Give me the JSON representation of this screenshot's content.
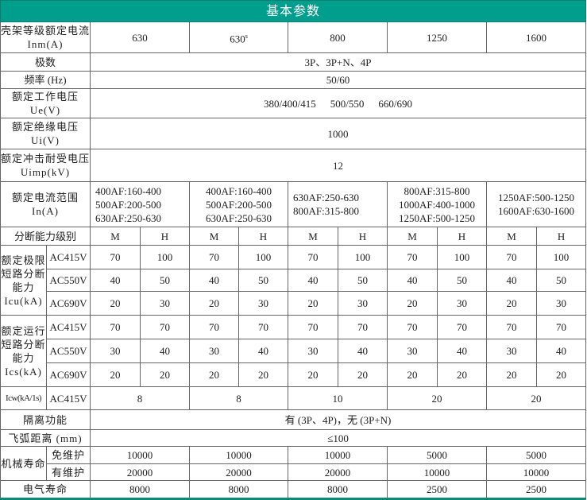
{
  "title": "基本参数",
  "frame_current": {
    "label": "壳架等级额定电流 Inm(A)",
    "values": [
      "630",
      "630",
      "800",
      "1250",
      "1600"
    ],
    "sup": "s"
  },
  "poles": {
    "label": "极数",
    "value": "3P、3P+N、4P"
  },
  "frequency": {
    "label": "频率 (Hz)",
    "value": "50/60"
  },
  "ue": {
    "label": "额定工作电压 Ue(V)",
    "values": [
      "380/400/415",
      "500/550",
      "660/690"
    ]
  },
  "ui": {
    "label": "额定绝缘电压 Ui(V)",
    "value": "1000"
  },
  "uimp": {
    "label": "额定冲击耐受电压 Uimp(kV)",
    "value": "12"
  },
  "in_range": {
    "label": "额定电流范围 In(A)",
    "cells": [
      [
        "400AF:160-400",
        "500AF:200-500",
        "630AF:250-630"
      ],
      [
        "400AF:160-400",
        "500AF:200-500",
        "630AF:250-630"
      ],
      [
        "630AF:250-630",
        "800AF:315-800"
      ],
      [
        "800AF:315-800",
        "1000AF:400-1000",
        "1250AF:500-1250"
      ],
      [
        "1250AF:500-1250",
        "1600AF:630-1600"
      ]
    ]
  },
  "breaking_level": {
    "label": "分断能力级别",
    "values": [
      "M",
      "H",
      "M",
      "H",
      "M",
      "H",
      "M",
      "H",
      "M",
      "H"
    ]
  },
  "icu": {
    "label": "额定极限短路分断能力 Icu(kA)",
    "rows": [
      {
        "voltage": "AC415V",
        "values": [
          "70",
          "100",
          "70",
          "100",
          "70",
          "100",
          "70",
          "100",
          "70",
          "100"
        ]
      },
      {
        "voltage": "AC550V",
        "values": [
          "40",
          "50",
          "40",
          "50",
          "40",
          "50",
          "40",
          "50",
          "40",
          "50"
        ]
      },
      {
        "voltage": "AC690V",
        "values": [
          "20",
          "30",
          "20",
          "30",
          "20",
          "30",
          "20",
          "30",
          "20",
          "30"
        ]
      }
    ]
  },
  "ics": {
    "label": "额定运行短路分断能力 Ics(kA)",
    "rows": [
      {
        "voltage": "AC415V",
        "values": [
          "70",
          "70",
          "70",
          "70",
          "70",
          "70",
          "70",
          "70",
          "70",
          "70"
        ]
      },
      {
        "voltage": "AC550V",
        "values": [
          "30",
          "40",
          "30",
          "40",
          "30",
          "40",
          "30",
          "40",
          "30",
          "40"
        ]
      },
      {
        "voltage": "AC690V",
        "values": [
          "20",
          "20",
          "20",
          "20",
          "20",
          "20",
          "20",
          "20",
          "20",
          "20"
        ]
      }
    ]
  },
  "icw": {
    "label": "Icw(kA/1s)",
    "voltage": "AC415V",
    "values": [
      "8",
      "8",
      "10",
      "20",
      "20"
    ]
  },
  "isolation": {
    "label": "隔离功能",
    "value": "有 (3P、4P)，无 (3P+N)"
  },
  "arc_distance": {
    "label": "飞弧距离 (mm)",
    "value": "≤100"
  },
  "mechanical_life": {
    "label": "机械寿命",
    "rows": [
      {
        "label": "免维护",
        "values": [
          "10000",
          "10000",
          "10000",
          "5000",
          "5000"
        ]
      },
      {
        "label": "有维护",
        "values": [
          "20000",
          "20000",
          "20000",
          "10000",
          "10000"
        ]
      }
    ]
  },
  "electrical_life": {
    "label": "电气寿命",
    "values": [
      "8000",
      "8000",
      "8000",
      "2500",
      "2500"
    ]
  }
}
